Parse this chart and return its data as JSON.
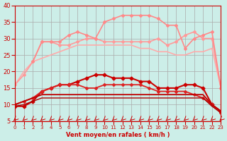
{
  "title": "",
  "xlabel": "Vent moyen/en rafales ( km/h )",
  "ylabel": "",
  "xlim": [
    0,
    23
  ],
  "ylim": [
    5,
    40
  ],
  "yticks": [
    5,
    10,
    15,
    20,
    25,
    30,
    35,
    40
  ],
  "xticks": [
    0,
    1,
    2,
    3,
    4,
    5,
    6,
    7,
    8,
    9,
    10,
    11,
    12,
    13,
    14,
    15,
    16,
    17,
    18,
    19,
    20,
    21,
    22,
    23
  ],
  "background_color": "#cceee8",
  "grid_color": "#aaaaaa",
  "lines": [
    {
      "x": [
        0,
        1,
        2,
        3,
        4,
        5,
        6,
        7,
        8,
        9,
        10,
        11,
        12,
        13,
        14,
        15,
        16,
        17,
        18,
        19,
        20,
        21,
        22,
        23
      ],
      "y": [
        16,
        20,
        23,
        24,
        25,
        26,
        27,
        28,
        28,
        28,
        28,
        28,
        28,
        28,
        27,
        27,
        26,
        26,
        25,
        25,
        26,
        26,
        27,
        15
      ],
      "color": "#ffaaaa",
      "lw": 1.2,
      "marker": null
    },
    {
      "x": [
        0,
        1,
        2,
        3,
        4,
        5,
        6,
        7,
        8,
        9,
        10,
        11,
        12,
        13,
        14,
        15,
        16,
        17,
        18,
        19,
        20,
        21,
        22,
        23
      ],
      "y": [
        16,
        19,
        23,
        29,
        29,
        28,
        28,
        29,
        30,
        30,
        29,
        29,
        29,
        29,
        29,
        29,
        30,
        28,
        29,
        31,
        32,
        30,
        30,
        15
      ],
      "color": "#ff9999",
      "lw": 1.2,
      "marker": "D",
      "ms": 2
    },
    {
      "x": [
        2,
        3,
        4,
        5,
        6,
        7,
        8,
        9,
        10,
        11,
        12,
        13,
        14,
        15,
        16,
        17,
        18,
        19,
        20,
        21,
        22,
        23
      ],
      "y": [
        23,
        29,
        29,
        29,
        31,
        32,
        31,
        30,
        35,
        36,
        37,
        37,
        37,
        37,
        36,
        34,
        34,
        27,
        30,
        31,
        32,
        15
      ],
      "color": "#ff8888",
      "lw": 1.2,
      "marker": "D",
      "ms": 2
    },
    {
      "x": [
        0,
        1,
        2,
        3,
        4,
        5,
        6,
        7,
        8,
        9,
        10,
        11,
        12,
        13,
        14,
        15,
        16,
        17,
        18,
        19,
        20,
        21,
        22,
        23
      ],
      "y": [
        9.5,
        9.5,
        11,
        14,
        15,
        16,
        16,
        17,
        18,
        19,
        19,
        18,
        18,
        18,
        17,
        17,
        15,
        15,
        15,
        16,
        16,
        15,
        10,
        8
      ],
      "color": "#cc0000",
      "lw": 1.5,
      "marker": "D",
      "ms": 2.5
    },
    {
      "x": [
        0,
        1,
        2,
        3,
        4,
        5,
        6,
        7,
        8,
        9,
        10,
        11,
        12,
        13,
        14,
        15,
        16,
        17,
        18,
        19,
        20,
        21,
        22,
        23
      ],
      "y": [
        10,
        11,
        12,
        14,
        15,
        16,
        16,
        16,
        15,
        15,
        16,
        16,
        16,
        16,
        16,
        15,
        14,
        14,
        14,
        14,
        13,
        12,
        10,
        7.5
      ],
      "color": "#dd2222",
      "lw": 1.3,
      "marker": "D",
      "ms": 2
    },
    {
      "x": [
        0,
        1,
        2,
        3,
        4,
        5,
        6,
        7,
        8,
        9,
        10,
        11,
        12,
        13,
        14,
        15,
        16,
        17,
        18,
        19,
        20,
        21,
        22,
        23
      ],
      "y": [
        10,
        11,
        12,
        13,
        13,
        13,
        13,
        13,
        13,
        13,
        13,
        13,
        13,
        13,
        13,
        13,
        13,
        13,
        13,
        13,
        13,
        13,
        10,
        8
      ],
      "color": "#cc1111",
      "lw": 1.2,
      "marker": null
    },
    {
      "x": [
        0,
        1,
        2,
        3,
        4,
        5,
        6,
        7,
        8,
        9,
        10,
        11,
        12,
        13,
        14,
        15,
        16,
        17,
        18,
        19,
        20,
        21,
        22,
        23
      ],
      "y": [
        10,
        11,
        12,
        13,
        13,
        13,
        13,
        13,
        13,
        13,
        13,
        13,
        13,
        13,
        13,
        13,
        13,
        13,
        13,
        13,
        13,
        13,
        10,
        8
      ],
      "color": "#bb0000",
      "lw": 1.0,
      "marker": null
    },
    {
      "x": [
        0,
        1,
        2,
        3,
        4,
        5,
        6,
        7,
        8,
        9,
        10,
        11,
        12,
        13,
        14,
        15,
        16,
        17,
        18,
        19,
        20,
        21,
        22,
        23
      ],
      "y": [
        9.5,
        10,
        11,
        12,
        12,
        12,
        12,
        12,
        12,
        12,
        12,
        12,
        12,
        12,
        12,
        12,
        12,
        12,
        12,
        12,
        12,
        12,
        9.5,
        7.5
      ],
      "color": "#aa0000",
      "lw": 1.0,
      "marker": null
    }
  ],
  "arrows": {
    "y": 5.5,
    "x_values": [
      0,
      1,
      2,
      3,
      4,
      5,
      6,
      7,
      8,
      9,
      10,
      11,
      12,
      13,
      14,
      15,
      16,
      17,
      18,
      19,
      20,
      21,
      22,
      23
    ],
    "color": "#cc0000"
  }
}
